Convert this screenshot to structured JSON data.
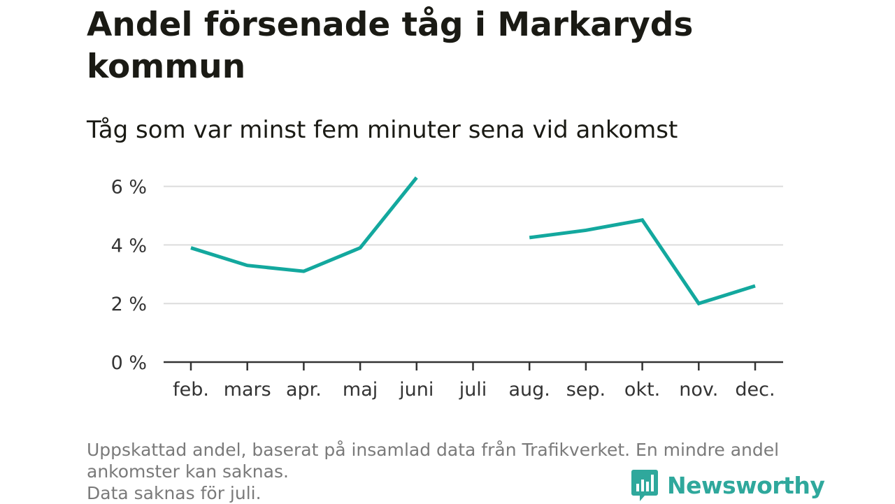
{
  "title": "Andel försenade tåg i Markaryds kommun",
  "subtitle": "Tåg som var minst fem minuter sena vid ankomst",
  "note": {
    "line1": "Uppskattad andel, baserat på insamlad data från Trafikverket. En mindre andel",
    "line2": "ankomster kan saknas.",
    "line3": "Data saknas för juli."
  },
  "logo": {
    "text": "Newsworthy",
    "icon": "newsworthy-chart-icon"
  },
  "colors": {
    "line": "#13a89e",
    "grid": "#dcdcdc",
    "axis": "#333333",
    "text": "#1a1a14",
    "note": "#7a7a7a",
    "logo": "#2fa89c"
  },
  "chart_data": {
    "type": "line",
    "title": "Andel försenade tåg i Markaryds kommun",
    "subtitle": "Tåg som var minst fem minuter sena vid ankomst",
    "xlabel": "",
    "ylabel": "",
    "categories": [
      "feb.",
      "mars",
      "apr.",
      "maj",
      "juni",
      "juli",
      "aug.",
      "sep.",
      "okt.",
      "nov.",
      "dec."
    ],
    "series": [
      {
        "values": [
          3.9,
          3.3,
          3.1,
          3.9,
          6.3,
          null,
          4.25,
          4.5,
          4.85,
          2.0,
          2.6
        ]
      }
    ],
    "yticks": [
      0,
      2,
      4,
      6
    ],
    "ytick_labels": [
      "0 %",
      "2 %",
      "4 %",
      "6 %"
    ],
    "ylim": [
      0,
      6.3
    ],
    "grid": "horizontal",
    "legend": "none"
  }
}
